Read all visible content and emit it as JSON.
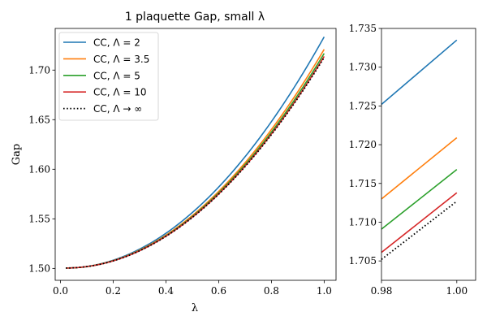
{
  "chart_data": [
    {
      "type": "line",
      "title": "1 plaquette Gap, small λ",
      "xlabel": "λ",
      "ylabel": "Gap",
      "xlim": [
        -0.02,
        1.045
      ],
      "ylim": [
        1.488,
        1.742
      ],
      "xticks": [
        0.0,
        0.2,
        0.4,
        0.6,
        0.8,
        1.0
      ],
      "xtick_labels": [
        "0.0",
        "0.2",
        "0.4",
        "0.6",
        "0.8",
        "1.0"
      ],
      "yticks": [
        1.5,
        1.55,
        1.6,
        1.65,
        1.7
      ],
      "ytick_labels": [
        "1.50",
        "1.55",
        "1.60",
        "1.65",
        "1.70"
      ],
      "legend_position": "top-left",
      "series": [
        {
          "name": "CC, Λ = 2",
          "color": "#1f77b4",
          "style": "solid",
          "x_start": 0.02,
          "x_end": 1.0,
          "y_start": 1.5004,
          "y_end": 1.7335
        },
        {
          "name": "CC, Λ = 3.5",
          "color": "#ff7f0e",
          "style": "solid",
          "x_start": 0.02,
          "x_end": 1.0,
          "y_start": 1.5004,
          "y_end": 1.7209
        },
        {
          "name": "CC, Λ = 5",
          "color": "#2ca02c",
          "style": "solid",
          "x_start": 0.02,
          "x_end": 1.0,
          "y_start": 1.5004,
          "y_end": 1.7168
        },
        {
          "name": "CC, Λ = 10",
          "color": "#d62728",
          "style": "solid",
          "x_start": 0.02,
          "x_end": 1.0,
          "y_start": 1.5004,
          "y_end": 1.7138
        },
        {
          "name": "CC, Λ → ∞",
          "color": "#000000",
          "style": "dotted",
          "x_start": 0.02,
          "x_end": 1.0,
          "y_start": 1.5004,
          "y_end": 1.7127
        }
      ]
    },
    {
      "type": "line",
      "title": "",
      "xlabel": "",
      "ylabel": "",
      "xlim": [
        0.98,
        1.005
      ],
      "ylim": [
        1.7025,
        1.735
      ],
      "xticks": [
        0.98,
        1.0
      ],
      "xtick_labels": [
        "0.98",
        "1.00"
      ],
      "yticks": [
        1.705,
        1.71,
        1.715,
        1.72,
        1.725,
        1.73,
        1.735
      ],
      "ytick_labels": [
        "1.705",
        "1.710",
        "1.715",
        "1.720",
        "1.725",
        "1.730",
        "1.735"
      ],
      "series": [
        {
          "name": "CC, Λ = 2",
          "color": "#1f77b4",
          "style": "solid",
          "points": [
            [
              0.98,
              1.7252
            ],
            [
              1.0,
              1.7335
            ]
          ]
        },
        {
          "name": "CC, Λ = 3.5",
          "color": "#ff7f0e",
          "style": "solid",
          "points": [
            [
              0.98,
              1.713
            ],
            [
              1.0,
              1.7209
            ]
          ]
        },
        {
          "name": "CC, Λ = 5",
          "color": "#2ca02c",
          "style": "solid",
          "points": [
            [
              0.98,
              1.7091
            ],
            [
              1.0,
              1.7168
            ]
          ]
        },
        {
          "name": "CC, Λ = 10",
          "color": "#d62728",
          "style": "solid",
          "points": [
            [
              0.98,
              1.7061
            ],
            [
              1.0,
              1.7138
            ]
          ]
        },
        {
          "name": "CC, Λ → ∞",
          "color": "#000000",
          "style": "dotted",
          "points": [
            [
              0.98,
              1.7052
            ],
            [
              1.0,
              1.7127
            ]
          ]
        }
      ]
    }
  ]
}
